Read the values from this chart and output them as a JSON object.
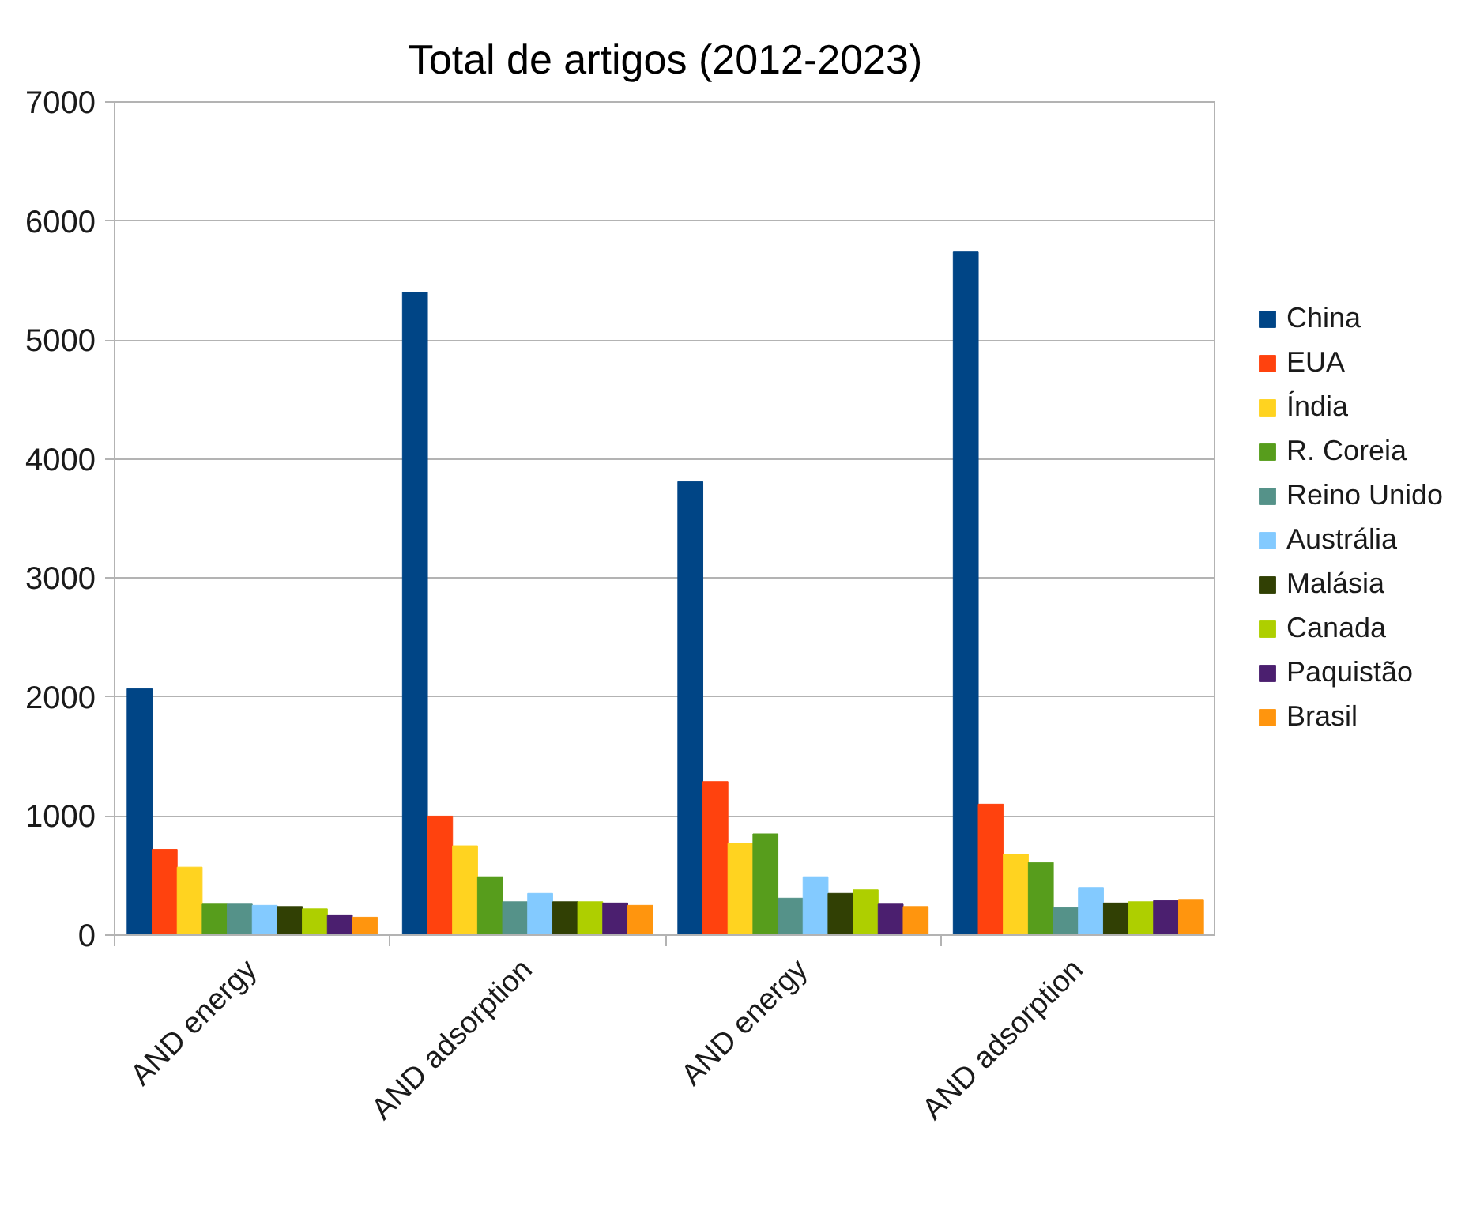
{
  "chart_data": {
    "type": "bar",
    "title": "Total de artigos (2012-2023)",
    "categories": [
      "AND energy",
      "AND adsorption",
      "AND energy",
      "AND adsorption"
    ],
    "series": [
      {
        "name": "China",
        "color": "#004586",
        "values": [
          2070,
          5400,
          3810,
          5740
        ]
      },
      {
        "name": "EUA",
        "color": "#ff420e",
        "values": [
          720,
          1000,
          1290,
          1100
        ]
      },
      {
        "name": "Índia",
        "color": "#ffd320",
        "values": [
          570,
          750,
          770,
          680
        ]
      },
      {
        "name": "R. Coreia",
        "color": "#579d1c",
        "values": [
          260,
          490,
          850,
          610
        ]
      },
      {
        "name": "Reino Unido",
        "color": "#559289",
        "values": [
          260,
          280,
          310,
          230
        ]
      },
      {
        "name": "Austrália",
        "color": "#83caff",
        "values": [
          250,
          350,
          490,
          400
        ]
      },
      {
        "name": "Malásia",
        "color": "#314004",
        "values": [
          240,
          280,
          350,
          270
        ]
      },
      {
        "name": "Canada",
        "color": "#aecf00",
        "values": [
          220,
          280,
          380,
          280
        ]
      },
      {
        "name": "Paquistão",
        "color": "#4b1f6f",
        "values": [
          170,
          270,
          260,
          290
        ]
      },
      {
        "name": "Brasil",
        "color": "#ff950e",
        "values": [
          150,
          250,
          240,
          300
        ]
      }
    ],
    "ylim": [
      0,
      7000
    ],
    "yticks": [
      0,
      1000,
      2000,
      3000,
      4000,
      5000,
      6000,
      7000
    ],
    "grid": "y",
    "legend": "right"
  }
}
